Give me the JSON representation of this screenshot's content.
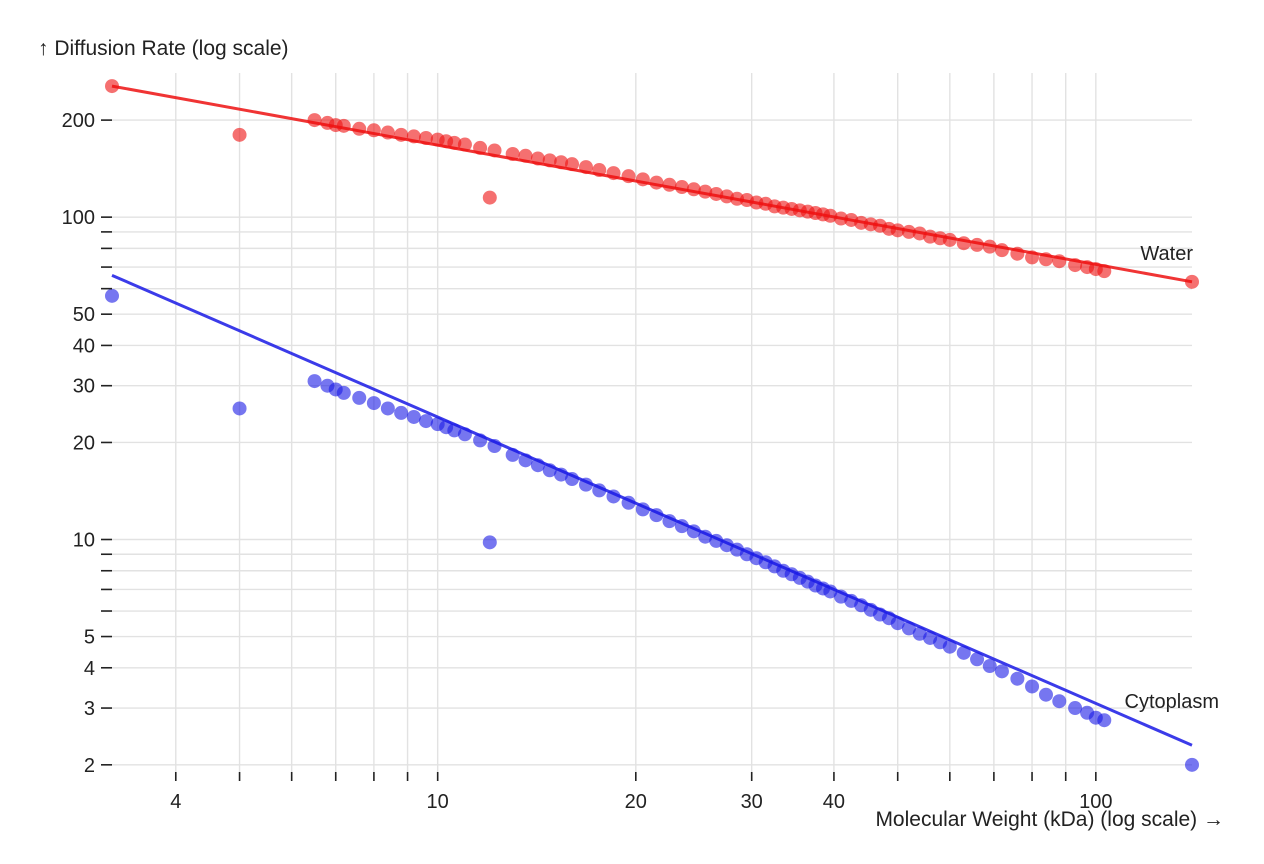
{
  "chart_data": {
    "type": "scatter",
    "title": "",
    "xlabel": "Molecular Weight (kDa) (log scale) →",
    "ylabel": "↑ Diffusion Rate (log scale)",
    "xscale": "log",
    "yscale": "log",
    "xlim": [
      3.2,
      140
    ],
    "ylim": [
      1.9,
      280
    ],
    "grid": true,
    "x_ticks": [
      4,
      5,
      6,
      7,
      8,
      9,
      10,
      20,
      30,
      40,
      50,
      60,
      70,
      80,
      90,
      100
    ],
    "x_tick_labels": [
      "4",
      "",
      "",
      "",
      "",
      "",
      "10",
      "20",
      "30",
      "40",
      "",
      "",
      "",
      "",
      "",
      "100"
    ],
    "y_ticks": [
      2,
      3,
      4,
      5,
      6,
      7,
      8,
      9,
      10,
      20,
      30,
      40,
      50,
      60,
      70,
      80,
      90,
      100,
      200
    ],
    "y_tick_labels": [
      "2",
      "3",
      "4",
      "5",
      "",
      "",
      "",
      "",
      "10",
      "20",
      "30",
      "40",
      "50",
      "",
      "",
      "",
      "",
      "100",
      "200"
    ],
    "series": [
      {
        "name": "Water",
        "color": "#ee1111",
        "fit": {
          "x": [
            3.2,
            140
          ],
          "y": [
            255,
            63
          ]
        },
        "outliers": [
          [
            3.2,
            255
          ],
          [
            5.0,
            180
          ],
          [
            12.0,
            115
          ],
          [
            140,
            63
          ]
        ],
        "points": [
          [
            6.5,
            200
          ],
          [
            6.8,
            196
          ],
          [
            7.0,
            193
          ],
          [
            7.2,
            192
          ],
          [
            7.6,
            188
          ],
          [
            8.0,
            186
          ],
          [
            8.4,
            183
          ],
          [
            8.8,
            180
          ],
          [
            9.2,
            178
          ],
          [
            9.6,
            176
          ],
          [
            10.0,
            174
          ],
          [
            10.3,
            172
          ],
          [
            10.6,
            170
          ],
          [
            11.0,
            168
          ],
          [
            11.6,
            164
          ],
          [
            12.2,
            161
          ],
          [
            13.0,
            157
          ],
          [
            13.6,
            155
          ],
          [
            14.2,
            152
          ],
          [
            14.8,
            150
          ],
          [
            15.4,
            148
          ],
          [
            16.0,
            146
          ],
          [
            16.8,
            143
          ],
          [
            17.6,
            140
          ],
          [
            18.5,
            137
          ],
          [
            19.5,
            134
          ],
          [
            20.5,
            131
          ],
          [
            21.5,
            128
          ],
          [
            22.5,
            126
          ],
          [
            23.5,
            124
          ],
          [
            24.5,
            122
          ],
          [
            25.5,
            120
          ],
          [
            26.5,
            118
          ],
          [
            27.5,
            116
          ],
          [
            28.5,
            114
          ],
          [
            29.5,
            113
          ],
          [
            30.5,
            111
          ],
          [
            31.5,
            110
          ],
          [
            32.5,
            108
          ],
          [
            33.5,
            107
          ],
          [
            34.5,
            106
          ],
          [
            35.5,
            105
          ],
          [
            36.5,
            104
          ],
          [
            37.5,
            103
          ],
          [
            38.5,
            102
          ],
          [
            39.5,
            101
          ],
          [
            41,
            99
          ],
          [
            42.5,
            98
          ],
          [
            44,
            96
          ],
          [
            45.5,
            95
          ],
          [
            47,
            94
          ],
          [
            48.5,
            92
          ],
          [
            50,
            91
          ],
          [
            52,
            90
          ],
          [
            54,
            89
          ],
          [
            56,
            87
          ],
          [
            58,
            86
          ],
          [
            60,
            85
          ],
          [
            63,
            83
          ],
          [
            66,
            82
          ],
          [
            69,
            81
          ],
          [
            72,
            79
          ],
          [
            76,
            77
          ],
          [
            80,
            75
          ],
          [
            84,
            74
          ],
          [
            88,
            73
          ],
          [
            93,
            71
          ],
          [
            97,
            70
          ],
          [
            100,
            69
          ],
          [
            103,
            68
          ]
        ]
      },
      {
        "name": "Cytoplasm",
        "color": "#1a1ae6",
        "fit": {
          "x": [
            3.2,
            140
          ],
          "y": [
            66,
            2.3
          ]
        },
        "outliers": [
          [
            3.2,
            57
          ],
          [
            5.0,
            25.5
          ],
          [
            12.0,
            9.8
          ],
          [
            140,
            2.0
          ]
        ],
        "points": [
          [
            6.5,
            31
          ],
          [
            6.8,
            30
          ],
          [
            7.0,
            29.2
          ],
          [
            7.2,
            28.5
          ],
          [
            7.6,
            27.5
          ],
          [
            8.0,
            26.5
          ],
          [
            8.4,
            25.5
          ],
          [
            8.8,
            24.7
          ],
          [
            9.2,
            24.0
          ],
          [
            9.6,
            23.3
          ],
          [
            10.0,
            22.8
          ],
          [
            10.3,
            22.3
          ],
          [
            10.6,
            21.8
          ],
          [
            11.0,
            21.2
          ],
          [
            11.6,
            20.3
          ],
          [
            12.2,
            19.5
          ],
          [
            13.0,
            18.3
          ],
          [
            13.6,
            17.6
          ],
          [
            14.2,
            17.0
          ],
          [
            14.8,
            16.4
          ],
          [
            15.4,
            15.9
          ],
          [
            16.0,
            15.4
          ],
          [
            16.8,
            14.8
          ],
          [
            17.6,
            14.2
          ],
          [
            18.5,
            13.6
          ],
          [
            19.5,
            13.0
          ],
          [
            20.5,
            12.4
          ],
          [
            21.5,
            11.9
          ],
          [
            22.5,
            11.4
          ],
          [
            23.5,
            11.0
          ],
          [
            24.5,
            10.6
          ],
          [
            25.5,
            10.2
          ],
          [
            26.5,
            9.9
          ],
          [
            27.5,
            9.6
          ],
          [
            28.5,
            9.3
          ],
          [
            29.5,
            9.0
          ],
          [
            30.5,
            8.75
          ],
          [
            31.5,
            8.5
          ],
          [
            32.5,
            8.25
          ],
          [
            33.5,
            8.0
          ],
          [
            34.5,
            7.8
          ],
          [
            35.5,
            7.6
          ],
          [
            36.5,
            7.4
          ],
          [
            37.5,
            7.2
          ],
          [
            38.5,
            7.05
          ],
          [
            39.5,
            6.9
          ],
          [
            41,
            6.65
          ],
          [
            42.5,
            6.45
          ],
          [
            44,
            6.25
          ],
          [
            45.5,
            6.05
          ],
          [
            47,
            5.85
          ],
          [
            48.5,
            5.7
          ],
          [
            50,
            5.5
          ],
          [
            52,
            5.3
          ],
          [
            54,
            5.1
          ],
          [
            56,
            4.95
          ],
          [
            58,
            4.8
          ],
          [
            60,
            4.65
          ],
          [
            63,
            4.45
          ],
          [
            66,
            4.25
          ],
          [
            69,
            4.05
          ],
          [
            72,
            3.9
          ],
          [
            76,
            3.7
          ],
          [
            80,
            3.5
          ],
          [
            84,
            3.3
          ],
          [
            88,
            3.15
          ],
          [
            93,
            3.0
          ],
          [
            97,
            2.9
          ],
          [
            100,
            2.8
          ],
          [
            103,
            2.75
          ]
        ]
      }
    ]
  }
}
